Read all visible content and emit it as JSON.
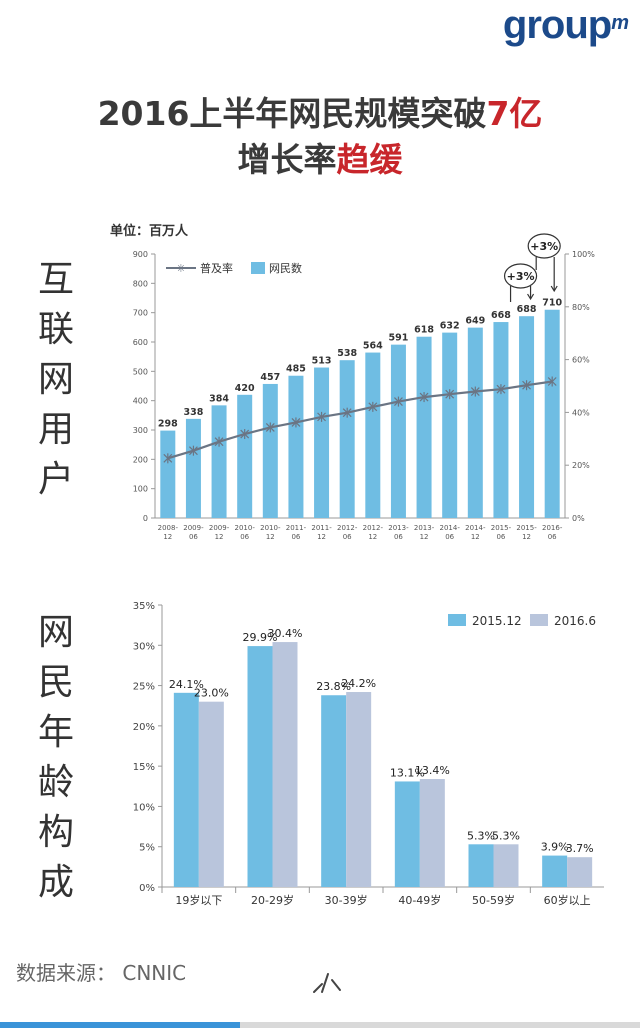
{
  "logo": {
    "text": "group",
    "sup": "m"
  },
  "title": {
    "line1_prefix": "2016上半年网民规模突破",
    "line1_highlight": "7亿",
    "line2_prefix": "增长率",
    "line2_highlight": "趋缓"
  },
  "colors": {
    "bar": "#6fbde3",
    "bar2": "#b9c5dc",
    "line": "#6b7584",
    "highlight": "#c8262b",
    "axis": "#666666"
  },
  "chart_data": [
    {
      "type": "bar",
      "side_label": [
        "互",
        "联",
        "网",
        "用",
        "户"
      ],
      "unit_label": "单位：百万人",
      "categories": [
        "2008-\n12",
        "2009-\n06",
        "2009-\n12",
        "2010-\n06",
        "2010-\n12",
        "2011-\n06",
        "2011-\n12",
        "2012-\n06",
        "2012-\n12",
        "2013-\n06",
        "2013-\n12",
        "2014-\n06",
        "2014-\n12",
        "2015-\n06",
        "2015-\n12",
        "2016-\n06"
      ],
      "series": [
        {
          "name": "网民数",
          "axis": "left",
          "values": [
            298,
            338,
            384,
            420,
            457,
            485,
            513,
            538,
            564,
            591,
            618,
            632,
            649,
            668,
            688,
            710
          ]
        },
        {
          "name": "普及率",
          "axis": "right",
          "type": "line",
          "values": [
            22.6,
            25.5,
            28.9,
            31.8,
            34.3,
            36.2,
            38.3,
            39.9,
            42.1,
            44.1,
            45.8,
            46.9,
            47.9,
            48.8,
            50.3,
            51.7
          ]
        }
      ],
      "y_left": {
        "min": 0,
        "max": 900,
        "ticks": [
          "0",
          "100",
          "200",
          "300",
          "400",
          "500",
          "600",
          "700",
          "800",
          "900"
        ]
      },
      "y_right": {
        "min": 0,
        "max": 100,
        "ticks": [
          "0%",
          "20%",
          "40%",
          "60%",
          "80%",
          "100%"
        ]
      },
      "legend": [
        "普及率",
        "网民数"
      ],
      "legend_position": "top-left",
      "annotations": [
        {
          "text": "+3%",
          "target_index": 14
        },
        {
          "text": "+3%",
          "target_index": 15
        }
      ]
    },
    {
      "type": "bar",
      "side_label": [
        "网",
        "民",
        "年",
        "龄",
        "构",
        "成"
      ],
      "categories": [
        "19岁以下",
        "20-29岁",
        "30-39岁",
        "40-49岁",
        "50-59岁",
        "60岁以上"
      ],
      "series": [
        {
          "name": "2015.12",
          "values": [
            24.1,
            29.9,
            23.8,
            13.1,
            5.3,
            3.9
          ],
          "labels": [
            "24.1%",
            "29.9%",
            "23.8%",
            "13.1%",
            "5.3%",
            "3.9%"
          ]
        },
        {
          "name": "2016.6",
          "values": [
            23.0,
            30.4,
            24.2,
            13.4,
            5.3,
            3.7
          ],
          "labels": [
            "23.0%",
            "30.4%",
            "24.2%",
            "13.4%",
            "5.3%",
            "3.7%"
          ]
        }
      ],
      "y": {
        "min": 0,
        "max": 35,
        "ticks": [
          "0%",
          "5%",
          "10%",
          "15%",
          "20%",
          "25%",
          "30%",
          "35%"
        ]
      },
      "legend_position": "top-right",
      "grid": false
    }
  ],
  "source": "数据来源： CNNIC"
}
